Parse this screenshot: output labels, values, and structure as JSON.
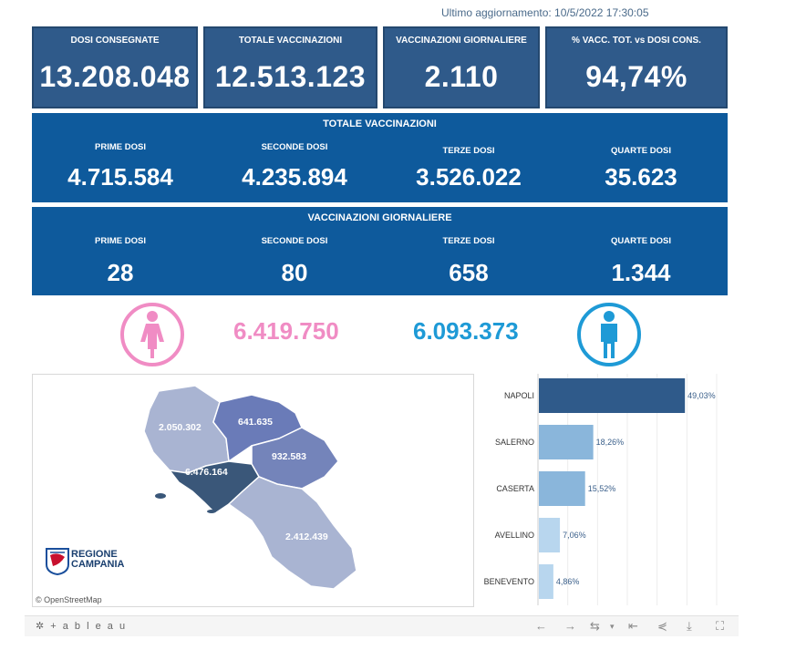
{
  "header": {
    "last_update": "Ultimo aggiornamento: 10/5/2022 17:30:05"
  },
  "kpis": [
    {
      "title": "DOSI CONSEGNATE",
      "value": "13.208.048"
    },
    {
      "title": "TOTALE VACCINAZIONI",
      "value": "12.513.123"
    },
    {
      "title": "VACCINAZIONI GIORNALIERE",
      "value": "2.110"
    },
    {
      "title": "% VACC. TOT. vs DOSI CONS.",
      "value": "94,74%"
    }
  ],
  "totale": {
    "title": "TOTALE VACCINAZIONI",
    "items": [
      {
        "label": "PRIME DOSI",
        "value": "4.715.584"
      },
      {
        "label": "SECONDE DOSI",
        "value": "4.235.894"
      },
      {
        "label": "TERZE DOSI",
        "value": "3.526.022"
      },
      {
        "label": "QUARTE DOSI",
        "value": "35.623"
      }
    ]
  },
  "giornaliere": {
    "title": "VACCINAZIONI GIORNALIERE",
    "items": [
      {
        "label": "PRIME DOSI",
        "value": "28"
      },
      {
        "label": "SECONDE DOSI",
        "value": "80"
      },
      {
        "label": "TERZE DOSI",
        "value": "658"
      },
      {
        "label": "QUARTE DOSI",
        "value": "1.344"
      }
    ]
  },
  "gender": {
    "female": {
      "value": "6.419.750",
      "color": "#f08cc4",
      "icon": "female-icon"
    },
    "male": {
      "value": "6.093.373",
      "color": "#1e9ad6",
      "icon": "male-icon"
    }
  },
  "map": {
    "regions": [
      {
        "value": "2.050.302"
      },
      {
        "value": "641.635"
      },
      {
        "value": "932.583"
      },
      {
        "value": "6.476.164"
      },
      {
        "value": "2.412.439"
      }
    ],
    "logo": {
      "line1": "REGIONE",
      "line2": "CAMPANIA"
    },
    "attribution": "© OpenStreetMap"
  },
  "chart_data": {
    "type": "bar",
    "orientation": "horizontal",
    "categories": [
      "NAPOLI",
      "SALERNO",
      "CASERTA",
      "AVELLINO",
      "BENEVENTO"
    ],
    "values": [
      49.03,
      18.26,
      15.52,
      7.06,
      4.86
    ],
    "value_labels": [
      "49,03%",
      "18,26%",
      "15,52%",
      "7,06%",
      "4,86%"
    ],
    "colors": [
      "#2f5a8a",
      "#8ab6db",
      "#8ab6db",
      "#b8d6ee",
      "#b8d6ee"
    ],
    "xlim": [
      0,
      60
    ],
    "grid": true
  },
  "footer": {
    "brand": "+ a b l e a u"
  }
}
